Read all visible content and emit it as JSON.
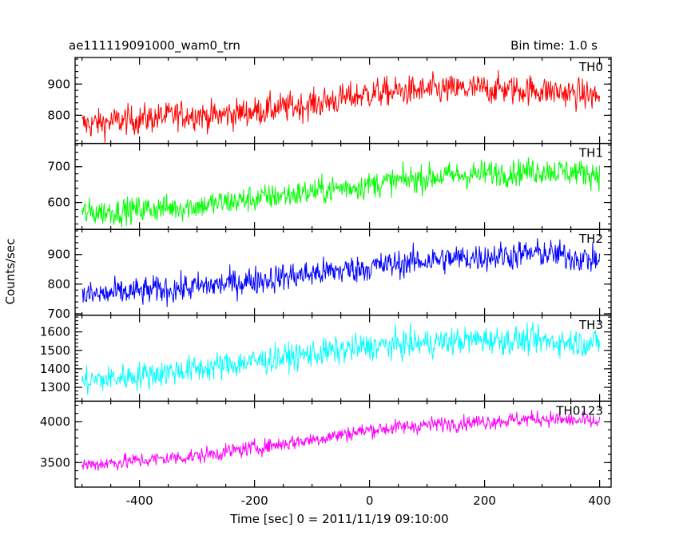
{
  "header": {
    "left_title": "ae111119091000_wam0_trn",
    "right_title": "Bin time: 1.0 s"
  },
  "chart_data": {
    "type": "line",
    "title": "ae111119091000_wam0_trn",
    "subtitle": "Bin time: 1.0 s",
    "xlabel": "Time [sec] 0 = 2011/11/19 09:10:00",
    "ylabel": "Counts/sec",
    "xlim": [
      -512,
      420
    ],
    "x_ticks": [
      -400,
      -200,
      0,
      200,
      400
    ],
    "x_range_of_data": [
      -500,
      400
    ],
    "bin_time_s": 1.0,
    "grid": false,
    "legend": "none",
    "panels": [
      {
        "name": "TH0",
        "color": "#ff0000",
        "ylim": [
          710,
          985
        ],
        "y_ticks": [
          800,
          900
        ],
        "trend_x": [
          -500,
          -300,
          -280,
          -100,
          0,
          100,
          200,
          300,
          400
        ],
        "trend_y": [
          770,
          805,
          795,
          835,
          870,
          880,
          885,
          880,
          860
        ],
        "noise": 38
      },
      {
        "name": "TH1",
        "color": "#00ff00",
        "ylim": [
          525,
          765
        ],
        "y_ticks": [
          600,
          700
        ],
        "trend_x": [
          -500,
          -300,
          -100,
          100,
          300,
          400
        ],
        "trend_y": [
          570,
          590,
          630,
          670,
          690,
          680
        ],
        "noise": 30
      },
      {
        "name": "TH2",
        "color": "#0000ff",
        "ylim": [
          695,
          985
        ],
        "y_ticks": [
          700,
          800,
          900
        ],
        "trend_x": [
          -500,
          -300,
          -100,
          100,
          300,
          400
        ],
        "trend_y": [
          760,
          790,
          835,
          880,
          905,
          880
        ],
        "noise": 38
      },
      {
        "name": "TH3",
        "color": "#00ffff",
        "ylim": [
          1225,
          1690
        ],
        "y_ticks": [
          1300,
          1400,
          1500,
          1600
        ],
        "trend_x": [
          -500,
          -300,
          -100,
          0,
          200,
          400
        ],
        "trend_y": [
          1330,
          1400,
          1480,
          1520,
          1560,
          1540
        ],
        "noise": 60
      },
      {
        "name": "TH0123",
        "color": "#ff00ff",
        "ylim": [
          3200,
          4250
        ],
        "y_ticks": [
          3500,
          4000
        ],
        "trend_x": [
          -500,
          -300,
          -100,
          0,
          100,
          200,
          300,
          400
        ],
        "trend_y": [
          3470,
          3580,
          3780,
          3900,
          3960,
          4000,
          4040,
          3990
        ],
        "noise": 75
      }
    ]
  }
}
